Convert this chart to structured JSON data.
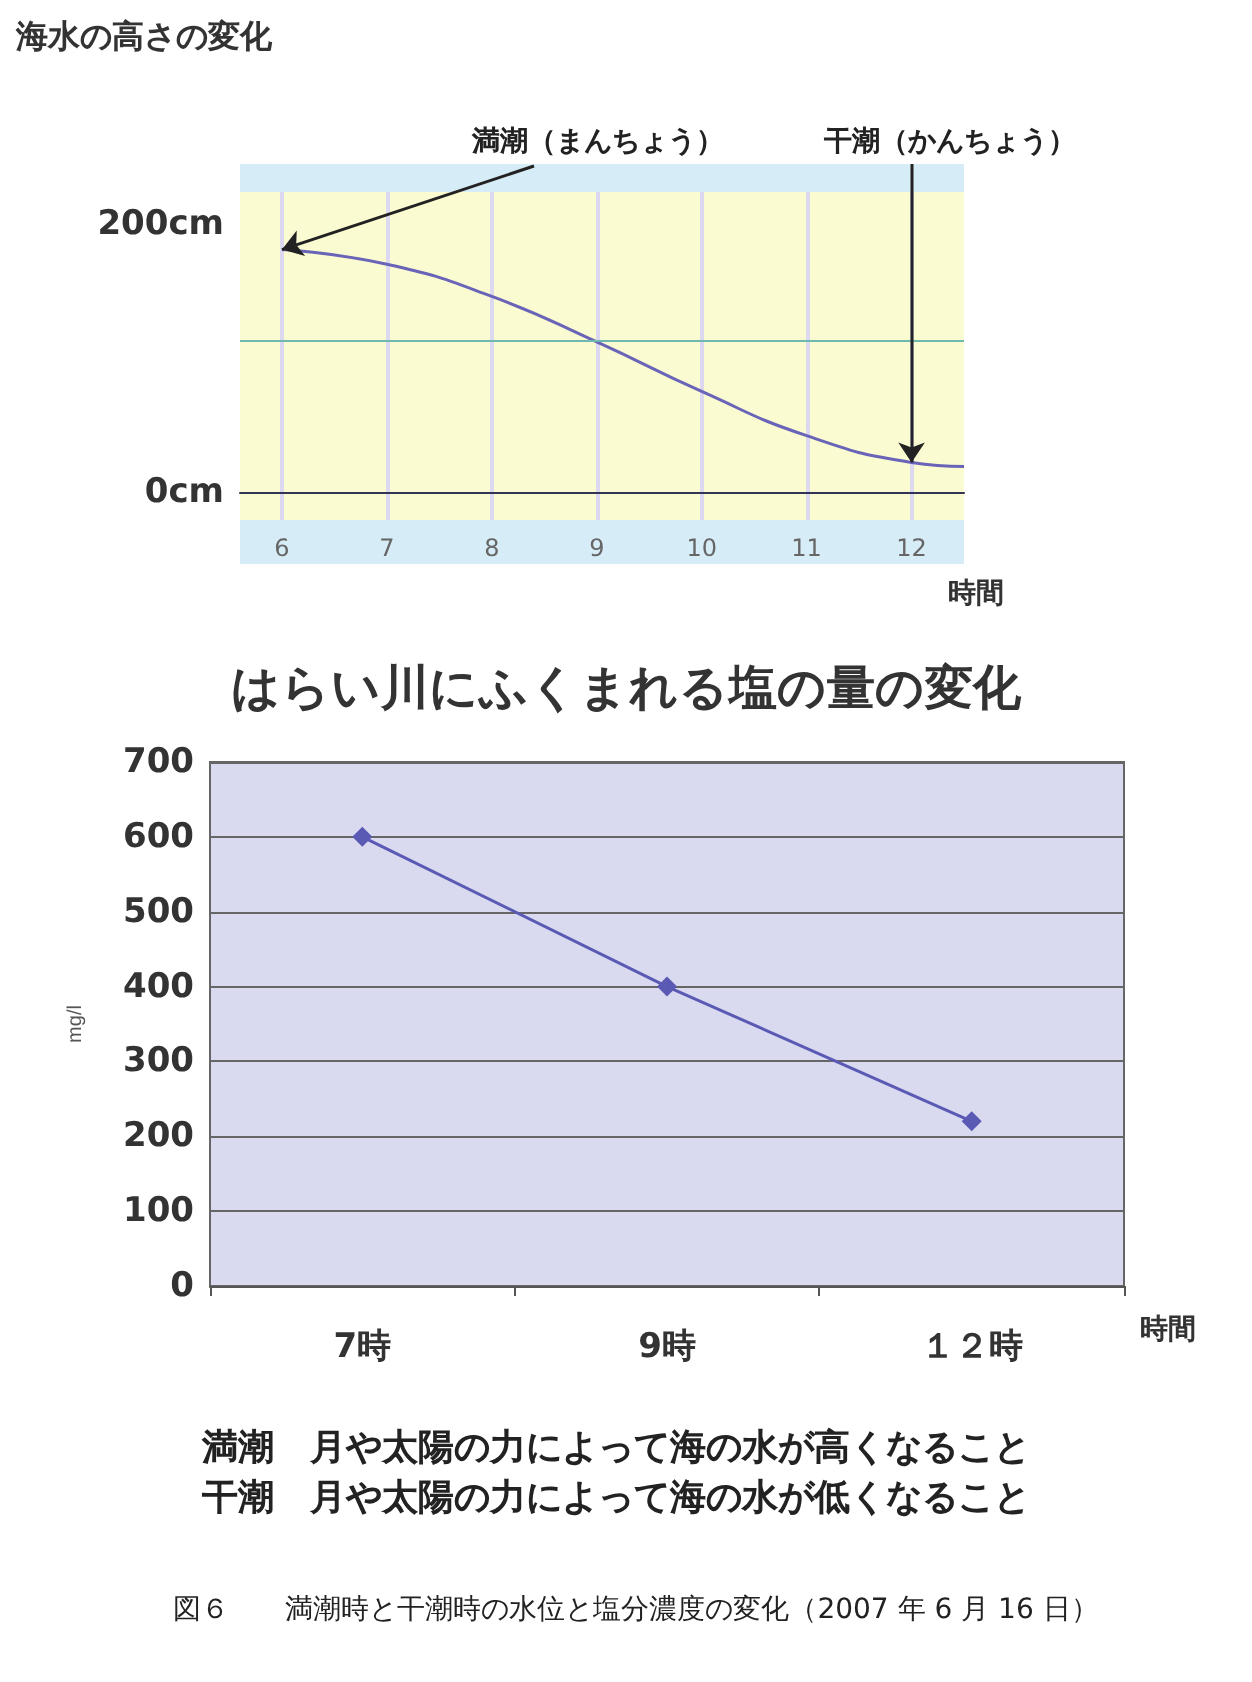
{
  "chart_data": [
    {
      "type": "line",
      "title": "海水の高さの変化",
      "xlabel": "時間",
      "x": [
        6,
        7,
        8,
        9,
        10,
        11,
        12,
        12.5
      ],
      "series": [
        {
          "color": "#6a64b8",
          "values": [
            181,
            170,
            146,
            112,
            75,
            42,
            22,
            19
          ]
        }
      ],
      "xlim": [
        5.6,
        12.5
      ],
      "xticks": [
        6,
        7,
        8,
        9,
        10,
        11,
        12
      ],
      "ylim": [
        -21,
        224
      ],
      "yticks": [
        {
          "value": 200,
          "label": "200cm"
        },
        {
          "value": 0,
          "label": "0cm"
        }
      ],
      "grid": "x",
      "marker": "none",
      "ref_lines": [
        {
          "axis": "y",
          "value": 113,
          "color": "#6fb8b0"
        }
      ],
      "annotations": [
        {
          "text": "満潮（まんちょう）",
          "x": 6,
          "y": 181
        },
        {
          "text": "干潮（かんちょう）",
          "x": 12,
          "y": 22
        }
      ]
    },
    {
      "type": "line",
      "title": "はらい川にふくまれる塩の量の変化",
      "xlabel": "時間",
      "ylabel": "mg/l",
      "categories": [
        "7時",
        "9時",
        "１２時"
      ],
      "series": [
        {
          "color": "#5a5ab4",
          "values": [
            600,
            400,
            220
          ]
        }
      ],
      "ylim": [
        0,
        700
      ],
      "yticks": [
        0,
        100,
        200,
        300,
        400,
        500,
        600,
        700
      ],
      "grid": "y",
      "marker": "diamond",
      "annotations": [
        "満潮　月や太陽の力によって海の水が高くなること",
        "干潮　月や太陽の力によって海の水が低くなること",
        "図６　　満潮時と干潮時の水位と塩分濃度の変化（2007 年 6 月 16 日）"
      ]
    }
  ]
}
